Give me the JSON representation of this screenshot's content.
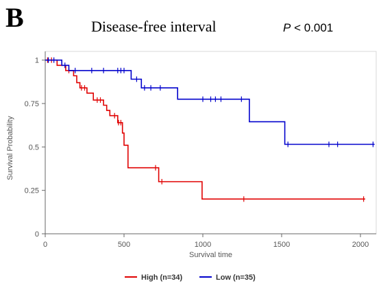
{
  "panel_label": "B",
  "chart_data": {
    "type": "line",
    "title": "Disease-free interval",
    "annotation": {
      "p_symbol": "P",
      "p_rest": " < 0.001"
    },
    "xlabel": "Survival time",
    "ylabel": "Survival Probability",
    "xlim": [
      0,
      2100
    ],
    "ylim": [
      0,
      1.05
    ],
    "xticks": [
      0,
      500,
      1000,
      1500,
      2000
    ],
    "yticks": [
      0,
      0.25,
      0.5,
      0.75,
      1
    ],
    "ytick_labels": [
      "0",
      "0.25",
      "0.5",
      "0.75",
      "1"
    ],
    "grid": false,
    "legend_position": "bottom-center",
    "series": [
      {
        "name": "High (n=34)",
        "color": "#e00000",
        "steps": [
          [
            0,
            1
          ],
          [
            75,
            0.97
          ],
          [
            130,
            0.94
          ],
          [
            180,
            0.91
          ],
          [
            200,
            0.87
          ],
          [
            220,
            0.84
          ],
          [
            265,
            0.81
          ],
          [
            305,
            0.77
          ],
          [
            370,
            0.74
          ],
          [
            390,
            0.71
          ],
          [
            410,
            0.68
          ],
          [
            460,
            0.64
          ],
          [
            490,
            0.58
          ],
          [
            500,
            0.51
          ],
          [
            525,
            0.38
          ],
          [
            720,
            0.3
          ],
          [
            995,
            0.2
          ],
          [
            2030,
            0.2
          ]
        ],
        "censors": [
          [
            15,
            1
          ],
          [
            40,
            1
          ],
          [
            150,
            0.94
          ],
          [
            230,
            0.84
          ],
          [
            250,
            0.84
          ],
          [
            330,
            0.77
          ],
          [
            350,
            0.77
          ],
          [
            440,
            0.68
          ],
          [
            465,
            0.64
          ],
          [
            480,
            0.64
          ],
          [
            700,
            0.38
          ],
          [
            740,
            0.3
          ],
          [
            1260,
            0.2
          ],
          [
            2020,
            0.2
          ]
        ]
      },
      {
        "name": "Low (n=35)",
        "color": "#0000cc",
        "steps": [
          [
            0,
            1
          ],
          [
            105,
            0.97
          ],
          [
            150,
            0.94
          ],
          [
            545,
            0.89
          ],
          [
            610,
            0.84
          ],
          [
            840,
            0.775
          ],
          [
            1295,
            0.645
          ],
          [
            1520,
            0.515
          ],
          [
            2090,
            0.515
          ]
        ],
        "censors": [
          [
            20,
            1
          ],
          [
            55,
            1
          ],
          [
            125,
            0.97
          ],
          [
            190,
            0.94
          ],
          [
            295,
            0.94
          ],
          [
            370,
            0.94
          ],
          [
            460,
            0.94
          ],
          [
            480,
            0.94
          ],
          [
            500,
            0.94
          ],
          [
            580,
            0.89
          ],
          [
            630,
            0.84
          ],
          [
            670,
            0.84
          ],
          [
            730,
            0.84
          ],
          [
            1000,
            0.775
          ],
          [
            1050,
            0.775
          ],
          [
            1080,
            0.775
          ],
          [
            1115,
            0.775
          ],
          [
            1245,
            0.775
          ],
          [
            1540,
            0.515
          ],
          [
            1800,
            0.515
          ],
          [
            1855,
            0.515
          ],
          [
            2080,
            0.515
          ]
        ]
      }
    ]
  }
}
